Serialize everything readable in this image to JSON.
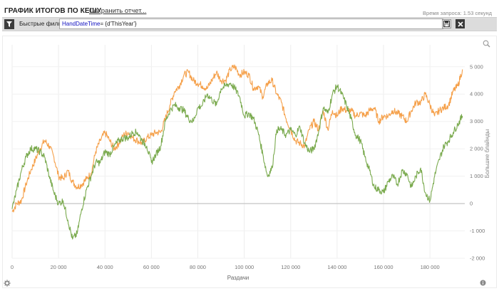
{
  "header": {
    "title": "ГРАФИК ИТОГОВ ПО КЕШУ",
    "save_label": "Сохранить отчет...",
    "query_time": "Время запроса: 1.53 секунд"
  },
  "filter_bar": {
    "label": "Быстрые фильтры",
    "value_keyword": "HandDateTime",
    "value_rest": "= {d'ThisYear'}",
    "icons": [
      "filter-icon",
      "save-icon",
      "close-icon"
    ]
  },
  "footer_icons": [
    "gear-icon",
    "info-icon",
    "zoom-icon"
  ],
  "chart_data": {
    "type": "line",
    "xlabel": "Раздачи",
    "ylabel": "Большие блайнды",
    "xlim": [
      0,
      195000
    ],
    "ylim": [
      -2000,
      5800
    ],
    "x_ticks": [
      0,
      20000,
      40000,
      60000,
      80000,
      100000,
      120000,
      140000,
      160000,
      180000
    ],
    "x_tick_labels": [
      "0",
      "20 000",
      "40 000",
      "60 000",
      "80 000",
      "100 000",
      "120 000",
      "140 000",
      "160 000",
      "180 000"
    ],
    "y_ticks": [
      -2000,
      -1000,
      0,
      1000,
      2000,
      3000,
      4000,
      5000
    ],
    "y_tick_labels": [
      "-2 000",
      "-1 000",
      "0",
      "1 000",
      "2 000",
      "3 000",
      "4 000",
      "5 000"
    ],
    "axis_side": "right",
    "grid": true,
    "series": [
      {
        "color": "#f5a04a",
        "x": [
          0,
          2000,
          4000,
          6000,
          8000,
          10000,
          12000,
          14000,
          16000,
          18000,
          20000,
          22000,
          24000,
          26000,
          28000,
          30000,
          32000,
          34000,
          36000,
          38000,
          40000,
          42000,
          44000,
          46000,
          48000,
          50000,
          52000,
          54000,
          56000,
          58000,
          60000,
          62000,
          64000,
          66000,
          68000,
          70000,
          72000,
          74000,
          76000,
          78000,
          80000,
          82000,
          84000,
          86000,
          88000,
          90000,
          92000,
          94000,
          96000,
          98000,
          100000,
          102000,
          104000,
          106000,
          108000,
          110000,
          112000,
          114000,
          116000,
          118000,
          120000,
          122000,
          124000,
          126000,
          128000,
          130000,
          132000,
          134000,
          136000,
          138000,
          140000,
          142000,
          144000,
          146000,
          148000,
          150000,
          152000,
          154000,
          156000,
          158000,
          160000,
          162000,
          164000,
          166000,
          168000,
          170000,
          172000,
          174000,
          176000,
          178000,
          180000,
          182000,
          184000,
          186000,
          188000,
          190000,
          192000,
          194000
        ],
        "y": [
          -300,
          0,
          100,
          700,
          1200,
          1600,
          2000,
          2300,
          2100,
          1700,
          1000,
          900,
          1200,
          800,
          600,
          700,
          900,
          1100,
          1900,
          2300,
          2600,
          2300,
          2000,
          2200,
          2500,
          2600,
          2400,
          2300,
          2200,
          2400,
          2500,
          2600,
          2600,
          3100,
          3600,
          4100,
          4300,
          4700,
          4800,
          4500,
          4400,
          4300,
          4200,
          4500,
          4800,
          4500,
          4500,
          4900,
          5000,
          4700,
          4800,
          4700,
          4200,
          4300,
          3900,
          4400,
          4500,
          4000,
          3700,
          3100,
          2700,
          2300,
          2200,
          2100,
          2700,
          3000,
          2700,
          3400,
          2700,
          3400,
          3200,
          3500,
          3400,
          3400,
          3200,
          3300,
          3200,
          3400,
          3500,
          3000,
          3200,
          3200,
          3400,
          3300,
          3200,
          3000,
          3400,
          3700,
          3700,
          4000,
          3600,
          3200,
          3400,
          3500,
          3600,
          4100,
          4300,
          4900
        ]
      },
      {
        "color": "#7aaa4e",
        "x": [
          0,
          2000,
          4000,
          6000,
          8000,
          10000,
          12000,
          14000,
          16000,
          18000,
          20000,
          22000,
          24000,
          26000,
          28000,
          30000,
          32000,
          34000,
          36000,
          38000,
          40000,
          42000,
          44000,
          46000,
          48000,
          50000,
          52000,
          54000,
          56000,
          58000,
          60000,
          62000,
          64000,
          66000,
          68000,
          70000,
          72000,
          74000,
          76000,
          78000,
          80000,
          82000,
          84000,
          86000,
          88000,
          90000,
          92000,
          94000,
          96000,
          98000,
          100000,
          102000,
          104000,
          106000,
          108000,
          110000,
          112000,
          114000,
          116000,
          118000,
          120000,
          122000,
          124000,
          126000,
          128000,
          130000,
          132000,
          134000,
          136000,
          138000,
          140000,
          142000,
          144000,
          146000,
          148000,
          150000,
          152000,
          154000,
          156000,
          158000,
          160000,
          162000,
          164000,
          166000,
          168000,
          170000,
          172000,
          174000,
          176000,
          178000,
          180000,
          182000,
          184000,
          186000,
          188000,
          190000,
          192000,
          194000
        ],
        "y": [
          -200,
          500,
          1200,
          1700,
          2000,
          2000,
          1900,
          1700,
          1000,
          400,
          0,
          100,
          -600,
          -1300,
          -1100,
          -200,
          500,
          1000,
          1500,
          1500,
          1900,
          1800,
          2100,
          2300,
          2400,
          2400,
          2600,
          2600,
          2300,
          2100,
          1500,
          1800,
          2100,
          3000,
          3400,
          3600,
          3500,
          3400,
          3100,
          3000,
          3500,
          3600,
          4000,
          3800,
          3600,
          4200,
          4300,
          4400,
          4200,
          3900,
          3200,
          3300,
          3100,
          2600,
          1800,
          1000,
          1300,
          2700,
          2700,
          2500,
          2700,
          2500,
          2800,
          2200,
          1900,
          2000,
          2600,
          3500,
          3300,
          4000,
          4300,
          4000,
          3600,
          3100,
          2500,
          2300,
          1700,
          1200,
          600,
          500,
          400,
          800,
          1000,
          700,
          1200,
          1100,
          600,
          1000,
          1300,
          400,
          100,
          1000,
          1600,
          2100,
          2300,
          2600,
          2900,
          3200
        ]
      }
    ]
  }
}
